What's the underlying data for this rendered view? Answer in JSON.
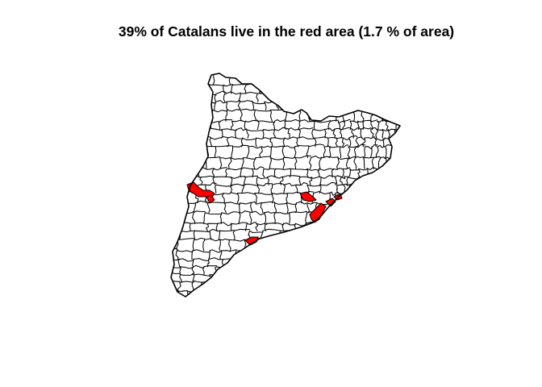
{
  "title": "39% of Catalans live in the red area (1.7 % of area)",
  "map": {
    "region": "Catalonia",
    "unit": "municipality",
    "highlight_color": "#ff0000",
    "boundary_color": "#000000",
    "background_color": "#ffffff",
    "stats": {
      "population_share_percent": 39,
      "area_share_percent": 1.7
    }
  }
}
